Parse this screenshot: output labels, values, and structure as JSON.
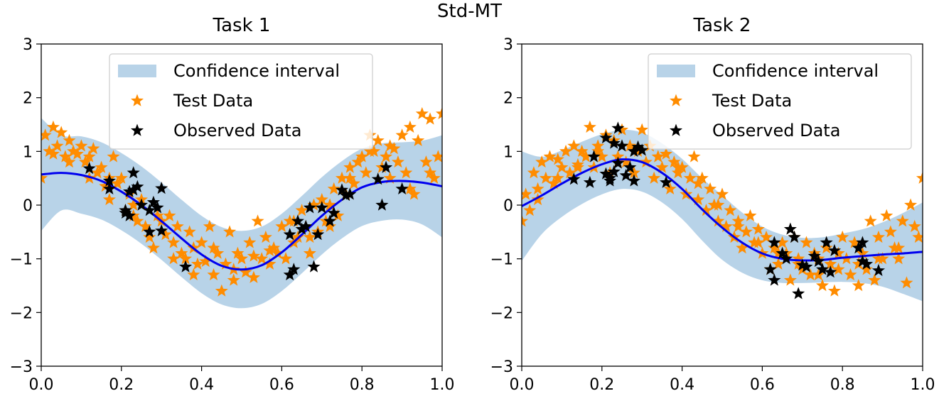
{
  "suptitle": "Std-MT",
  "legend": {
    "confidence": "Confidence interval",
    "test": "Test Data",
    "observed": "Observed Data"
  },
  "colors": {
    "band": "#b8d3e8",
    "mean": "#0000ee",
    "test": "#ff8c00",
    "observed": "#000000"
  },
  "chart_data": [
    {
      "type": "scatter",
      "title": "Task 1",
      "xlim": [
        0,
        1
      ],
      "ylim": [
        -3,
        3
      ],
      "xticks": [
        "0.0",
        "0.2",
        "0.4",
        "0.6",
        "0.8",
        "1.0"
      ],
      "yticks": [
        "3",
        "2",
        "1",
        "0",
        "−1",
        "−2",
        "−3"
      ],
      "mean": {
        "x": [
          0,
          0.05,
          0.1,
          0.15,
          0.2,
          0.25,
          0.3,
          0.35,
          0.4,
          0.45,
          0.5,
          0.55,
          0.6,
          0.65,
          0.7,
          0.75,
          0.8,
          0.85,
          0.9,
          0.95,
          1.0
        ],
        "y": [
          0.57,
          0.6,
          0.56,
          0.45,
          0.25,
          0.0,
          -0.3,
          -0.62,
          -0.92,
          -1.13,
          -1.2,
          -1.12,
          -0.88,
          -0.55,
          -0.2,
          0.1,
          0.33,
          0.43,
          0.45,
          0.42,
          0.35
        ]
      },
      "band_halfwidth": [
        1.05,
        0.7,
        0.72,
        0.72,
        0.72,
        0.72,
        0.72,
        0.72,
        0.72,
        0.72,
        0.72,
        0.72,
        0.72,
        0.72,
        0.72,
        0.72,
        0.72,
        0.72,
        0.72,
        0.78,
        0.95
      ],
      "test_data": {
        "x": [
          0.0,
          0.01,
          0.02,
          0.03,
          0.04,
          0.05,
          0.06,
          0.07,
          0.08,
          0.09,
          0.1,
          0.11,
          0.12,
          0.13,
          0.14,
          0.15,
          0.16,
          0.17,
          0.18,
          0.19,
          0.2,
          0.21,
          0.22,
          0.23,
          0.24,
          0.25,
          0.26,
          0.27,
          0.28,
          0.29,
          0.3,
          0.31,
          0.32,
          0.33,
          0.34,
          0.35,
          0.36,
          0.37,
          0.38,
          0.39,
          0.4,
          0.41,
          0.42,
          0.43,
          0.44,
          0.45,
          0.46,
          0.47,
          0.48,
          0.49,
          0.5,
          0.51,
          0.52,
          0.53,
          0.54,
          0.55,
          0.56,
          0.57,
          0.58,
          0.59,
          0.6,
          0.61,
          0.62,
          0.63,
          0.64,
          0.65,
          0.66,
          0.67,
          0.68,
          0.69,
          0.7,
          0.71,
          0.72,
          0.73,
          0.74,
          0.75,
          0.76,
          0.77,
          0.78,
          0.79,
          0.8,
          0.81,
          0.82,
          0.83,
          0.84,
          0.85,
          0.86,
          0.87,
          0.88,
          0.89,
          0.9,
          0.91,
          0.92,
          0.93,
          0.94,
          0.95,
          0.96,
          0.97,
          0.98,
          0.99,
          1.0,
          0.03,
          0.07,
          0.12,
          0.17,
          0.23,
          0.27,
          0.33,
          0.38,
          0.43,
          0.48,
          0.53,
          0.57,
          0.63,
          0.67,
          0.72,
          0.77,
          0.82,
          0.87,
          0.92,
          0.97
        ],
        "y": [
          0.5,
          1.3,
          1.0,
          1.45,
          1.1,
          1.35,
          0.9,
          1.2,
          1.0,
          0.95,
          1.1,
          0.8,
          0.9,
          1.05,
          0.6,
          0.7,
          0.35,
          0.5,
          0.9,
          0.4,
          0.5,
          -0.1,
          0.2,
          0.0,
          -0.3,
          0.1,
          -0.4,
          -0.5,
          -0.8,
          -0.2,
          -0.3,
          -0.55,
          -0.2,
          -0.7,
          -0.4,
          -0.9,
          -1.0,
          -0.5,
          -0.8,
          -1.1,
          -0.7,
          -1.05,
          -0.4,
          -1.3,
          -0.9,
          -1.6,
          -1.1,
          -0.5,
          -1.2,
          -0.9,
          -1.0,
          -1.25,
          -0.7,
          -1.35,
          -0.3,
          -1.0,
          -0.6,
          -1.1,
          -0.8,
          -0.9,
          -0.4,
          -1.0,
          -0.3,
          -0.7,
          -0.6,
          -0.1,
          -0.4,
          -0.9,
          0.0,
          -0.5,
          0.1,
          -0.3,
          -0.4,
          0.3,
          -0.2,
          0.5,
          0.2,
          0.7,
          0.4,
          0.8,
          0.9,
          0.6,
          1.3,
          1.0,
          1.2,
          0.7,
          0.9,
          0.5,
          1.05,
          0.8,
          1.3,
          0.6,
          1.45,
          0.2,
          1.2,
          1.7,
          0.8,
          1.6,
          0.5,
          0.9,
          1.7,
          0.95,
          0.8,
          0.5,
          0.1,
          -0.2,
          -0.6,
          -1.0,
          -1.3,
          -0.8,
          -1.4,
          -0.95,
          -0.85,
          -0.3,
          -0.6,
          0.0,
          0.5,
          1.0,
          1.1,
          0.3,
          0.6
        ]
      },
      "observed_data": {
        "x": [
          0.12,
          0.17,
          0.17,
          0.21,
          0.21,
          0.22,
          0.22,
          0.23,
          0.23,
          0.24,
          0.25,
          0.27,
          0.27,
          0.28,
          0.29,
          0.3,
          0.3,
          0.36,
          0.62,
          0.62,
          0.63,
          0.64,
          0.65,
          0.66,
          0.67,
          0.68,
          0.69,
          0.7,
          0.72,
          0.73,
          0.75,
          0.76,
          0.77,
          0.84,
          0.85,
          0.86,
          0.9
        ],
        "y": [
          0.68,
          0.45,
          0.3,
          -0.1,
          -0.15,
          0.25,
          -0.2,
          0.6,
          0.28,
          0.34,
          0.0,
          -0.5,
          -0.1,
          0.05,
          -0.05,
          0.31,
          -0.48,
          -1.15,
          -1.3,
          -0.55,
          -1.2,
          -0.3,
          -0.45,
          -0.4,
          -0.05,
          -1.15,
          -0.55,
          -0.05,
          -0.3,
          -0.15,
          0.28,
          0.18,
          0.2,
          0.48,
          0.0,
          0.7,
          0.3
        ]
      }
    },
    {
      "type": "scatter",
      "title": "Task 2",
      "xlim": [
        0,
        1
      ],
      "ylim": [
        -3,
        3
      ],
      "xticks": [
        "0.0",
        "0.2",
        "0.4",
        "0.6",
        "0.8",
        "1.0"
      ],
      "yticks": [
        "3",
        "2",
        "1",
        "0",
        "−1",
        "−2",
        "−3"
      ],
      "mean": {
        "x": [
          0,
          0.05,
          0.1,
          0.15,
          0.2,
          0.25,
          0.3,
          0.35,
          0.4,
          0.45,
          0.5,
          0.55,
          0.6,
          0.65,
          0.7,
          0.75,
          0.8,
          0.85,
          0.9,
          0.95,
          1.0
        ],
        "y": [
          -0.02,
          0.18,
          0.4,
          0.6,
          0.76,
          0.85,
          0.8,
          0.6,
          0.3,
          -0.08,
          -0.42,
          -0.7,
          -0.9,
          -1.0,
          -1.03,
          -1.02,
          -0.98,
          -0.95,
          -0.92,
          -0.9,
          -0.87
        ]
      },
      "band_halfwidth": [
        1.02,
        0.72,
        0.62,
        0.58,
        0.56,
        0.55,
        0.55,
        0.55,
        0.56,
        0.58,
        0.6,
        0.56,
        0.5,
        0.45,
        0.42,
        0.42,
        0.45,
        0.5,
        0.6,
        0.75,
        0.92
      ],
      "test_data": {
        "x": [
          0.0,
          0.01,
          0.02,
          0.03,
          0.04,
          0.05,
          0.06,
          0.07,
          0.08,
          0.09,
          0.1,
          0.11,
          0.12,
          0.13,
          0.14,
          0.15,
          0.16,
          0.17,
          0.18,
          0.19,
          0.2,
          0.21,
          0.22,
          0.23,
          0.24,
          0.25,
          0.26,
          0.27,
          0.28,
          0.29,
          0.3,
          0.31,
          0.32,
          0.33,
          0.34,
          0.35,
          0.36,
          0.37,
          0.38,
          0.39,
          0.4,
          0.41,
          0.42,
          0.43,
          0.44,
          0.45,
          0.46,
          0.47,
          0.48,
          0.49,
          0.5,
          0.51,
          0.52,
          0.53,
          0.54,
          0.55,
          0.56,
          0.57,
          0.58,
          0.59,
          0.6,
          0.61,
          0.62,
          0.63,
          0.64,
          0.65,
          0.66,
          0.67,
          0.68,
          0.69,
          0.7,
          0.71,
          0.72,
          0.73,
          0.74,
          0.75,
          0.76,
          0.77,
          0.78,
          0.79,
          0.8,
          0.81,
          0.82,
          0.83,
          0.84,
          0.85,
          0.86,
          0.87,
          0.88,
          0.89,
          0.9,
          0.91,
          0.92,
          0.93,
          0.94,
          0.95,
          0.96,
          0.97,
          0.98,
          0.99,
          1.0,
          0.04,
          0.09,
          0.14,
          0.19,
          0.24,
          0.29,
          0.34,
          0.39,
          0.44,
          0.49,
          0.54,
          0.59,
          0.64,
          0.69,
          0.74,
          0.79,
          0.84,
          0.89,
          0.94
        ],
        "y": [
          -0.3,
          0.2,
          -0.1,
          0.6,
          0.3,
          0.8,
          0.5,
          0.9,
          0.4,
          0.85,
          0.7,
          1.0,
          0.6,
          1.1,
          0.75,
          1.0,
          0.9,
          1.45,
          0.7,
          1.1,
          0.9,
          1.3,
          0.6,
          1.2,
          0.9,
          1.4,
          0.8,
          1.1,
          0.6,
          1.05,
          1.4,
          0.8,
          1.1,
          0.5,
          0.9,
          0.7,
          0.95,
          0.3,
          0.8,
          0.6,
          0.7,
          0.2,
          0.5,
          0.9,
          0.1,
          0.5,
          -0.1,
          0.3,
          0.0,
          -0.3,
          0.2,
          -0.4,
          -0.1,
          -0.6,
          -0.3,
          -0.8,
          -0.5,
          -0.2,
          -0.7,
          -0.45,
          -0.9,
          -0.6,
          -1.2,
          -0.8,
          -1.1,
          -0.7,
          -0.9,
          -1.4,
          -0.6,
          -1.0,
          -1.2,
          -0.7,
          -1.3,
          -0.9,
          -1.0,
          -1.5,
          -0.8,
          -1.1,
          -1.6,
          -0.9,
          -0.6,
          -1.0,
          -1.3,
          -0.7,
          -1.5,
          -0.9,
          -1.2,
          -0.3,
          -1.4,
          -0.6,
          -1.0,
          -0.2,
          -0.5,
          -0.8,
          -1.0,
          -0.3,
          -1.45,
          0.0,
          -0.4,
          -0.6,
          0.5,
          0.1,
          0.5,
          0.7,
          1.0,
          0.8,
          1.0,
          0.9,
          0.7,
          0.4,
          0.0,
          -0.4,
          -0.7,
          -0.9,
          -1.1,
          -1.3,
          -1.2,
          -1.1,
          -1.0,
          -0.8
        ]
      },
      "observed_data": {
        "x": [
          0.13,
          0.17,
          0.18,
          0.21,
          0.21,
          0.22,
          0.22,
          0.23,
          0.23,
          0.24,
          0.24,
          0.25,
          0.26,
          0.27,
          0.28,
          0.28,
          0.29,
          0.3,
          0.36,
          0.62,
          0.63,
          0.63,
          0.65,
          0.66,
          0.67,
          0.68,
          0.69,
          0.7,
          0.71,
          0.73,
          0.74,
          0.75,
          0.76,
          0.77,
          0.78,
          0.84,
          0.85,
          0.85,
          0.86,
          0.89
        ],
        "y": [
          0.48,
          0.42,
          0.9,
          1.25,
          0.58,
          0.5,
          0.45,
          1.15,
          0.62,
          1.43,
          0.78,
          1.1,
          0.55,
          0.7,
          0.45,
          1.0,
          1.08,
          1.02,
          0.42,
          -1.2,
          -0.7,
          -1.4,
          -0.9,
          -1.0,
          -0.45,
          -0.6,
          -1.65,
          -1.12,
          -1.15,
          -0.95,
          -1.05,
          -1.2,
          -0.7,
          -1.25,
          -0.85,
          -0.8,
          -1.05,
          -0.7,
          -1.1,
          -1.22
        ]
      }
    }
  ]
}
